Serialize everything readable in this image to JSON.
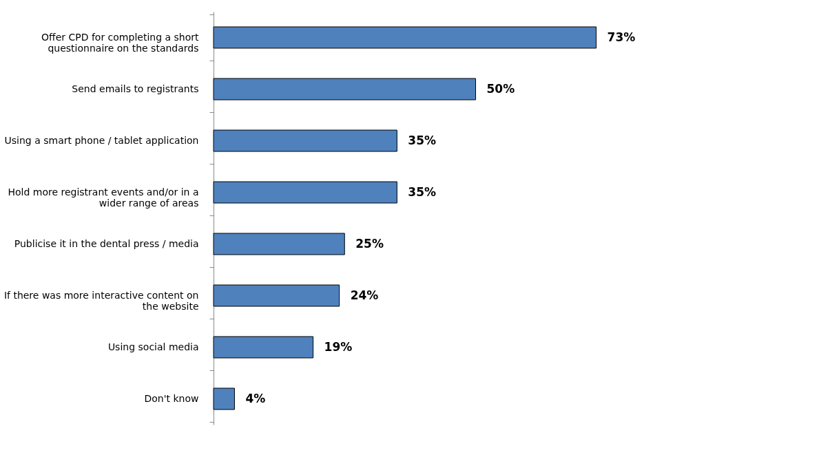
{
  "chart_data": {
    "type": "bar",
    "orientation": "horizontal",
    "categories": [
      "Offer CPD for completing a short questionnaire on the standards",
      "Send emails to registrants",
      "Using a smart phone / tablet application",
      "Hold more registrant events and/or in a wider range of areas",
      "Publicise it in the dental press / media",
      "If there was more interactive content on the website",
      "Using social media",
      "Don't know"
    ],
    "values": [
      73,
      50,
      35,
      35,
      25,
      24,
      19,
      4
    ],
    "value_labels": [
      "73%",
      "50%",
      "35%",
      "35%",
      "25%",
      "24%",
      "19%",
      "4%"
    ],
    "color": "#4f81bd",
    "grid": false
  }
}
